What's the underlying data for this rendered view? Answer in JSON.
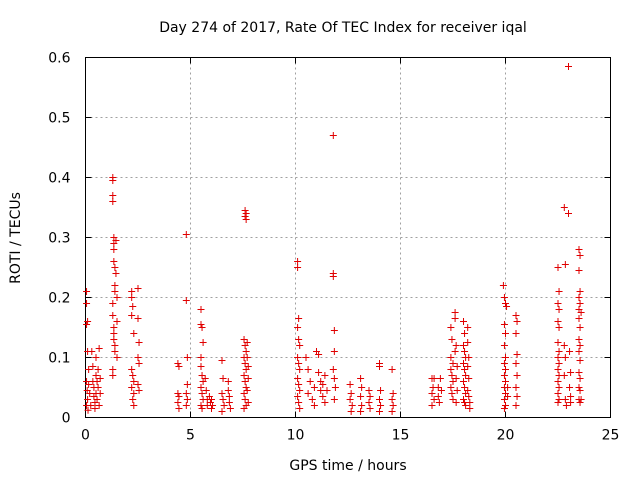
{
  "chart_data": {
    "type": "scatter",
    "title": "Day 274 of 2017, Rate Of TEC Index for receiver iqal",
    "xlabel": "GPS time / hours",
    "ylabel": "ROTI / TECUs",
    "xlim": [
      0,
      25
    ],
    "ylim": [
      0,
      0.6
    ],
    "grid": true,
    "marker": "+",
    "color": "#e00000",
    "x_ticks": [
      0,
      5,
      10,
      15,
      20,
      25
    ],
    "x_tick_labels": [
      "0",
      "5",
      "10",
      "15",
      "20",
      "25"
    ],
    "y_ticks": [
      0,
      0.1,
      0.2,
      0.3,
      0.4,
      0.5,
      0.6
    ],
    "y_tick_labels": [
      "0",
      "0.1",
      "0.2",
      "0.3",
      "0.4",
      "0.5",
      "0.6"
    ],
    "points": [
      [
        0.05,
        0.21
      ],
      [
        0.05,
        0.19
      ],
      [
        0.05,
        0.155
      ],
      [
        0.1,
        0.16
      ],
      [
        0.1,
        0.11
      ],
      [
        0.05,
        0.06
      ],
      [
        0.08,
        0.045
      ],
      [
        0.1,
        0.03
      ],
      [
        0.05,
        0.02
      ],
      [
        0.12,
        0.012
      ],
      [
        0.15,
        0.08
      ],
      [
        0.15,
        0.055
      ],
      [
        0.2,
        0.04
      ],
      [
        0.25,
        0.02
      ],
      [
        0.3,
        0.11
      ],
      [
        0.35,
        0.085
      ],
      [
        0.35,
        0.06
      ],
      [
        0.4,
        0.05
      ],
      [
        0.4,
        0.035
      ],
      [
        0.45,
        0.025
      ],
      [
        0.45,
        0.015
      ],
      [
        0.5,
        0.1
      ],
      [
        0.5,
        0.07
      ],
      [
        0.5,
        0.04
      ],
      [
        0.55,
        0.06
      ],
      [
        0.55,
        0.03
      ],
      [
        0.6,
        0.08
      ],
      [
        0.6,
        0.05
      ],
      [
        0.65,
        0.02
      ],
      [
        0.65,
        0.115
      ],
      [
        0.7,
        0.065
      ],
      [
        0.7,
        0.04
      ],
      [
        1.3,
        0.4
      ],
      [
        1.3,
        0.395
      ],
      [
        1.3,
        0.37
      ],
      [
        1.3,
        0.36
      ],
      [
        1.35,
        0.3
      ],
      [
        1.35,
        0.29
      ],
      [
        1.35,
        0.28
      ],
      [
        1.35,
        0.26
      ],
      [
        1.4,
        0.25
      ],
      [
        1.4,
        0.22
      ],
      [
        1.4,
        0.21
      ],
      [
        1.3,
        0.19
      ],
      [
        1.3,
        0.17
      ],
      [
        1.35,
        0.15
      ],
      [
        1.35,
        0.14
      ],
      [
        1.35,
        0.13
      ],
      [
        1.4,
        0.12
      ],
      [
        1.4,
        0.11
      ],
      [
        1.3,
        0.08
      ],
      [
        1.3,
        0.07
      ],
      [
        1.45,
        0.295
      ],
      [
        1.45,
        0.24
      ],
      [
        1.5,
        0.2
      ],
      [
        1.5,
        0.16
      ],
      [
        1.5,
        0.1
      ],
      [
        2.2,
        0.21
      ],
      [
        2.2,
        0.2
      ],
      [
        2.25,
        0.185
      ],
      [
        2.2,
        0.17
      ],
      [
        2.3,
        0.14
      ],
      [
        2.2,
        0.08
      ],
      [
        2.25,
        0.07
      ],
      [
        2.3,
        0.06
      ],
      [
        2.2,
        0.05
      ],
      [
        2.3,
        0.04
      ],
      [
        2.25,
        0.03
      ],
      [
        2.3,
        0.02
      ],
      [
        2.5,
        0.215
      ],
      [
        2.5,
        0.165
      ],
      [
        2.55,
        0.125
      ],
      [
        2.5,
        0.1
      ],
      [
        2.55,
        0.09
      ],
      [
        2.5,
        0.055
      ],
      [
        2.55,
        0.045
      ],
      [
        4.4,
        0.09
      ],
      [
        4.45,
        0.085
      ],
      [
        4.4,
        0.04
      ],
      [
        4.45,
        0.035
      ],
      [
        4.4,
        0.025
      ],
      [
        4.45,
        0.015
      ],
      [
        4.8,
        0.305
      ],
      [
        4.8,
        0.195
      ],
      [
        4.85,
        0.1
      ],
      [
        4.85,
        0.055
      ],
      [
        4.8,
        0.04
      ],
      [
        4.85,
        0.03
      ],
      [
        4.8,
        0.02
      ],
      [
        5.5,
        0.18
      ],
      [
        5.5,
        0.155
      ],
      [
        5.55,
        0.15
      ],
      [
        5.6,
        0.125
      ],
      [
        5.5,
        0.1
      ],
      [
        5.5,
        0.085
      ],
      [
        5.55,
        0.07
      ],
      [
        5.6,
        0.06
      ],
      [
        5.5,
        0.05
      ],
      [
        5.55,
        0.04
      ],
      [
        5.6,
        0.03
      ],
      [
        5.5,
        0.02
      ],
      [
        5.55,
        0.015
      ],
      [
        5.7,
        0.065
      ],
      [
        5.75,
        0.045
      ],
      [
        5.8,
        0.03
      ],
      [
        5.8,
        0.02
      ],
      [
        5.9,
        0.035
      ],
      [
        5.95,
        0.025
      ],
      [
        6.0,
        0.015
      ],
      [
        6.0,
        0.03
      ],
      [
        6.05,
        0.02
      ],
      [
        6.5,
        0.095
      ],
      [
        6.55,
        0.065
      ],
      [
        6.5,
        0.04
      ],
      [
        6.55,
        0.03
      ],
      [
        6.6,
        0.02
      ],
      [
        6.5,
        0.01
      ],
      [
        6.8,
        0.06
      ],
      [
        6.8,
        0.045
      ],
      [
        6.85,
        0.035
      ],
      [
        6.85,
        0.025
      ],
      [
        6.9,
        0.015
      ],
      [
        7.6,
        0.345
      ],
      [
        7.65,
        0.34
      ],
      [
        7.6,
        0.335
      ],
      [
        7.65,
        0.33
      ],
      [
        7.55,
        0.13
      ],
      [
        7.6,
        0.12
      ],
      [
        7.65,
        0.11
      ],
      [
        7.55,
        0.1
      ],
      [
        7.6,
        0.09
      ],
      [
        7.65,
        0.08
      ],
      [
        7.55,
        0.07
      ],
      [
        7.6,
        0.06
      ],
      [
        7.65,
        0.05
      ],
      [
        7.55,
        0.04
      ],
      [
        7.6,
        0.03
      ],
      [
        7.65,
        0.02
      ],
      [
        7.55,
        0.015
      ],
      [
        7.7,
        0.125
      ],
      [
        7.7,
        0.1
      ],
      [
        7.75,
        0.085
      ],
      [
        7.75,
        0.065
      ],
      [
        7.7,
        0.045
      ],
      [
        7.75,
        0.025
      ],
      [
        10.1,
        0.26
      ],
      [
        10.1,
        0.25
      ],
      [
        10.15,
        0.165
      ],
      [
        10.1,
        0.15
      ],
      [
        10.15,
        0.13
      ],
      [
        10.2,
        0.12
      ],
      [
        10.1,
        0.1
      ],
      [
        10.15,
        0.09
      ],
      [
        10.2,
        0.08
      ],
      [
        10.1,
        0.065
      ],
      [
        10.15,
        0.055
      ],
      [
        10.2,
        0.045
      ],
      [
        10.1,
        0.035
      ],
      [
        10.15,
        0.025
      ],
      [
        10.2,
        0.015
      ],
      [
        10.5,
        0.1
      ],
      [
        10.6,
        0.08
      ],
      [
        10.7,
        0.06
      ],
      [
        10.6,
        0.04
      ],
      [
        10.8,
        0.03
      ],
      [
        10.9,
        0.05
      ],
      [
        10.9,
        0.02
      ],
      [
        11.0,
        0.11
      ],
      [
        11.1,
        0.105
      ],
      [
        11.1,
        0.075
      ],
      [
        11.2,
        0.06
      ],
      [
        11.2,
        0.045
      ],
      [
        11.3,
        0.055
      ],
      [
        11.3,
        0.035
      ],
      [
        11.4,
        0.025
      ],
      [
        11.4,
        0.07
      ],
      [
        11.5,
        0.045
      ],
      [
        11.8,
        0.47
      ],
      [
        11.8,
        0.24
      ],
      [
        11.8,
        0.235
      ],
      [
        11.85,
        0.145
      ],
      [
        11.85,
        0.11
      ],
      [
        11.8,
        0.08
      ],
      [
        11.85,
        0.065
      ],
      [
        11.9,
        0.05
      ],
      [
        11.85,
        0.03
      ],
      [
        12.6,
        0.055
      ],
      [
        12.65,
        0.04
      ],
      [
        12.6,
        0.03
      ],
      [
        12.7,
        0.02
      ],
      [
        12.65,
        0.01
      ],
      [
        13.1,
        0.065
      ],
      [
        13.15,
        0.05
      ],
      [
        13.1,
        0.035
      ],
      [
        13.15,
        0.02
      ],
      [
        13.1,
        0.01
      ],
      [
        13.5,
        0.045
      ],
      [
        13.55,
        0.035
      ],
      [
        13.5,
        0.025
      ],
      [
        13.55,
        0.015
      ],
      [
        14.0,
        0.09
      ],
      [
        14.0,
        0.085
      ],
      [
        14.05,
        0.045
      ],
      [
        14.0,
        0.03
      ],
      [
        14.05,
        0.02
      ],
      [
        14.0,
        0.01
      ],
      [
        14.6,
        0.08
      ],
      [
        14.65,
        0.04
      ],
      [
        14.6,
        0.03
      ],
      [
        14.65,
        0.02
      ],
      [
        14.6,
        0.01
      ],
      [
        16.5,
        0.065
      ],
      [
        16.55,
        0.05
      ],
      [
        16.5,
        0.04
      ],
      [
        16.6,
        0.03
      ],
      [
        16.5,
        0.02
      ],
      [
        16.6,
        0.065
      ],
      [
        16.8,
        0.05
      ],
      [
        16.8,
        0.035
      ],
      [
        16.85,
        0.025
      ],
      [
        16.9,
        0.065
      ],
      [
        16.95,
        0.045
      ],
      [
        17.4,
        0.15
      ],
      [
        17.45,
        0.13
      ],
      [
        17.4,
        0.1
      ],
      [
        17.5,
        0.09
      ],
      [
        17.4,
        0.08
      ],
      [
        17.45,
        0.07
      ],
      [
        17.5,
        0.06
      ],
      [
        17.4,
        0.05
      ],
      [
        17.45,
        0.04
      ],
      [
        17.5,
        0.03
      ],
      [
        17.6,
        0.175
      ],
      [
        17.6,
        0.165
      ],
      [
        17.65,
        0.12
      ],
      [
        17.6,
        0.11
      ],
      [
        17.7,
        0.085
      ],
      [
        17.65,
        0.065
      ],
      [
        17.7,
        0.045
      ],
      [
        17.65,
        0.025
      ],
      [
        18.0,
        0.16
      ],
      [
        18.05,
        0.14
      ],
      [
        18.0,
        0.12
      ],
      [
        18.05,
        0.11
      ],
      [
        18.1,
        0.1
      ],
      [
        18.0,
        0.09
      ],
      [
        18.05,
        0.08
      ],
      [
        18.1,
        0.07
      ],
      [
        18.0,
        0.06
      ],
      [
        18.05,
        0.05
      ],
      [
        18.1,
        0.04
      ],
      [
        18.0,
        0.03
      ],
      [
        18.05,
        0.025
      ],
      [
        18.1,
        0.02
      ],
      [
        18.2,
        0.15
      ],
      [
        18.2,
        0.125
      ],
      [
        18.25,
        0.1
      ],
      [
        18.2,
        0.085
      ],
      [
        18.25,
        0.065
      ],
      [
        18.2,
        0.045
      ],
      [
        18.25,
        0.035
      ],
      [
        18.3,
        0.025
      ],
      [
        18.3,
        0.015
      ],
      [
        19.9,
        0.22
      ],
      [
        19.95,
        0.2
      ],
      [
        20.0,
        0.19
      ],
      [
        20.05,
        0.185
      ],
      [
        19.95,
        0.155
      ],
      [
        20.0,
        0.14
      ],
      [
        19.95,
        0.12
      ],
      [
        20.0,
        0.1
      ],
      [
        19.95,
        0.09
      ],
      [
        20.0,
        0.08
      ],
      [
        19.95,
        0.07
      ],
      [
        20.0,
        0.06
      ],
      [
        19.95,
        0.05
      ],
      [
        20.0,
        0.04
      ],
      [
        19.95,
        0.03
      ],
      [
        20.0,
        0.02
      ],
      [
        19.95,
        0.015
      ],
      [
        20.1,
        0.05
      ],
      [
        20.1,
        0.035
      ],
      [
        20.5,
        0.17
      ],
      [
        20.55,
        0.16
      ],
      [
        20.5,
        0.14
      ],
      [
        20.55,
        0.105
      ],
      [
        20.5,
        0.09
      ],
      [
        20.55,
        0.07
      ],
      [
        20.5,
        0.05
      ],
      [
        20.55,
        0.035
      ],
      [
        20.5,
        0.02
      ],
      [
        22.5,
        0.25
      ],
      [
        22.55,
        0.21
      ],
      [
        22.5,
        0.19
      ],
      [
        22.55,
        0.18
      ],
      [
        22.5,
        0.16
      ],
      [
        22.55,
        0.15
      ],
      [
        22.5,
        0.125
      ],
      [
        22.55,
        0.11
      ],
      [
        22.5,
        0.1
      ],
      [
        22.55,
        0.09
      ],
      [
        22.5,
        0.08
      ],
      [
        22.55,
        0.07
      ],
      [
        22.5,
        0.06
      ],
      [
        22.55,
        0.05
      ],
      [
        22.5,
        0.04
      ],
      [
        22.55,
        0.03
      ],
      [
        22.5,
        0.025
      ],
      [
        22.8,
        0.35
      ],
      [
        22.85,
        0.255
      ],
      [
        22.8,
        0.12
      ],
      [
        22.85,
        0.1
      ],
      [
        22.8,
        0.07
      ],
      [
        22.85,
        0.03
      ],
      [
        22.9,
        0.02
      ],
      [
        23.0,
        0.585
      ],
      [
        23.0,
        0.34
      ],
      [
        23.05,
        0.11
      ],
      [
        23.1,
        0.075
      ],
      [
        23.05,
        0.05
      ],
      [
        23.1,
        0.035
      ],
      [
        23.1,
        0.025
      ],
      [
        23.5,
        0.28
      ],
      [
        23.55,
        0.27
      ],
      [
        23.5,
        0.245
      ],
      [
        23.55,
        0.21
      ],
      [
        23.5,
        0.2
      ],
      [
        23.55,
        0.19
      ],
      [
        23.5,
        0.18
      ],
      [
        23.6,
        0.175
      ],
      [
        23.5,
        0.165
      ],
      [
        23.55,
        0.15
      ],
      [
        23.5,
        0.13
      ],
      [
        23.55,
        0.12
      ],
      [
        23.5,
        0.11
      ],
      [
        23.55,
        0.095
      ],
      [
        23.5,
        0.075
      ],
      [
        23.55,
        0.065
      ],
      [
        23.5,
        0.05
      ],
      [
        23.55,
        0.045
      ],
      [
        23.5,
        0.03
      ],
      [
        23.55,
        0.025
      ],
      [
        23.6,
        0.03
      ]
    ]
  }
}
